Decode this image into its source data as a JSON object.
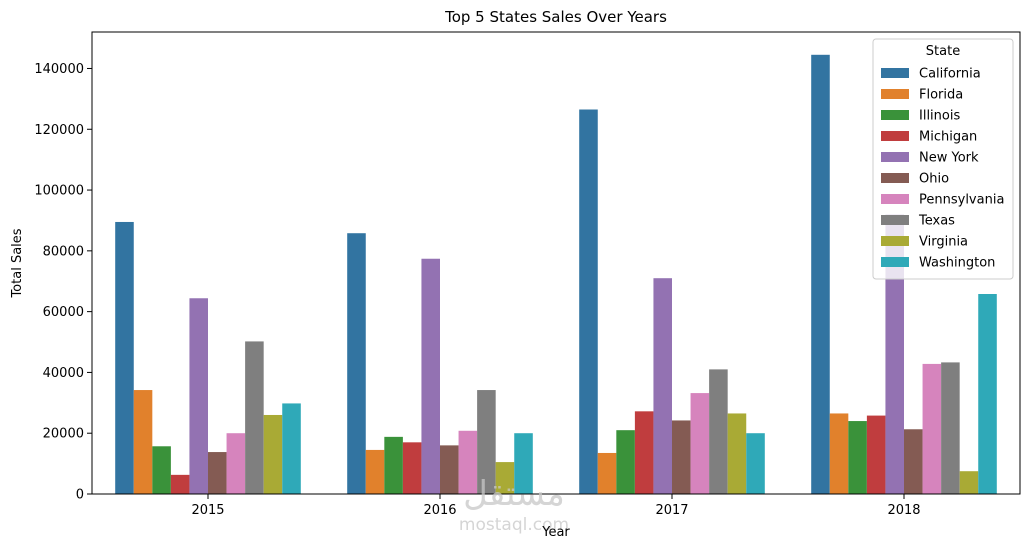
{
  "chart_data": {
    "type": "bar",
    "title": "Top 5 States Sales Over Years",
    "xlabel": "Year",
    "ylabel": "Total Sales",
    "categories": [
      "2015",
      "2016",
      "2017",
      "2018"
    ],
    "ylim": [
      0,
      152000
    ],
    "yticks": [
      0,
      20000,
      40000,
      60000,
      80000,
      100000,
      120000,
      140000
    ],
    "legend": {
      "title": "State",
      "placement": "top-right"
    },
    "series": [
      {
        "name": "California",
        "color": "#3274a1",
        "values": [
          89500,
          85800,
          126500,
          144500
        ]
      },
      {
        "name": "Florida",
        "color": "#e1812c",
        "values": [
          34200,
          14500,
          13500,
          26500
        ]
      },
      {
        "name": "Illinois",
        "color": "#3a923a",
        "values": [
          15700,
          18800,
          21000,
          24000
        ]
      },
      {
        "name": "Michigan",
        "color": "#c03d3e",
        "values": [
          6300,
          17000,
          27200,
          25800
        ]
      },
      {
        "name": "New York",
        "color": "#9372b2",
        "values": [
          64400,
          77400,
          71000,
          92000
        ]
      },
      {
        "name": "Ohio",
        "color": "#845b53",
        "values": [
          13800,
          16000,
          24200,
          21300
        ]
      },
      {
        "name": "Pennsylvania",
        "color": "#d684bd",
        "values": [
          20000,
          20800,
          33200,
          42800
        ]
      },
      {
        "name": "Texas",
        "color": "#7f7f7f",
        "values": [
          50200,
          34200,
          41000,
          43300
        ]
      },
      {
        "name": "Virginia",
        "color": "#a9aa35",
        "values": [
          26000,
          10500,
          26500,
          7500
        ]
      },
      {
        "name": "Washington",
        "color": "#2fa9b8",
        "values": [
          29800,
          20000,
          20000,
          65800
        ]
      }
    ]
  },
  "watermark": {
    "brand_ar": "مستقل",
    "domain": "mostaql.com"
  }
}
